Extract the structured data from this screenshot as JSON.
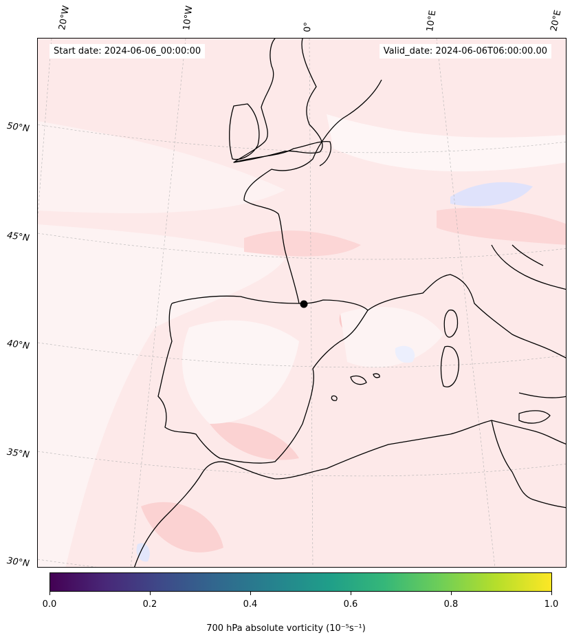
{
  "map": {
    "start_date": "Start date: 2024-06-06_00:00:00",
    "valid_date": "Valid_date: 2024-06-06T06:00:00.00",
    "lon_labels": [
      "20°W",
      "10°W",
      "0°",
      "10°E",
      "20°E"
    ],
    "lat_labels": [
      "50°N",
      "45°N",
      "40°N",
      "35°N",
      "30°N"
    ],
    "colors": {
      "field_base": "#fde9e9",
      "field_light": "#fdf3f3",
      "field_mid": "#fcd9d9",
      "field_strong": "#f9c4c4",
      "negative_light": "#eef0fd",
      "negative_mid": "#d8dcf9",
      "coast": "#000000",
      "grid": "#b0b0b0"
    },
    "marker": "black-dot"
  },
  "colorbar": {
    "ticks": [
      "0.0",
      "0.2",
      "0.4",
      "0.6",
      "0.8",
      "1.0"
    ],
    "label": "700 hPa absolute vorticity (10⁻⁵s⁻¹)",
    "colormap": "viridis"
  }
}
